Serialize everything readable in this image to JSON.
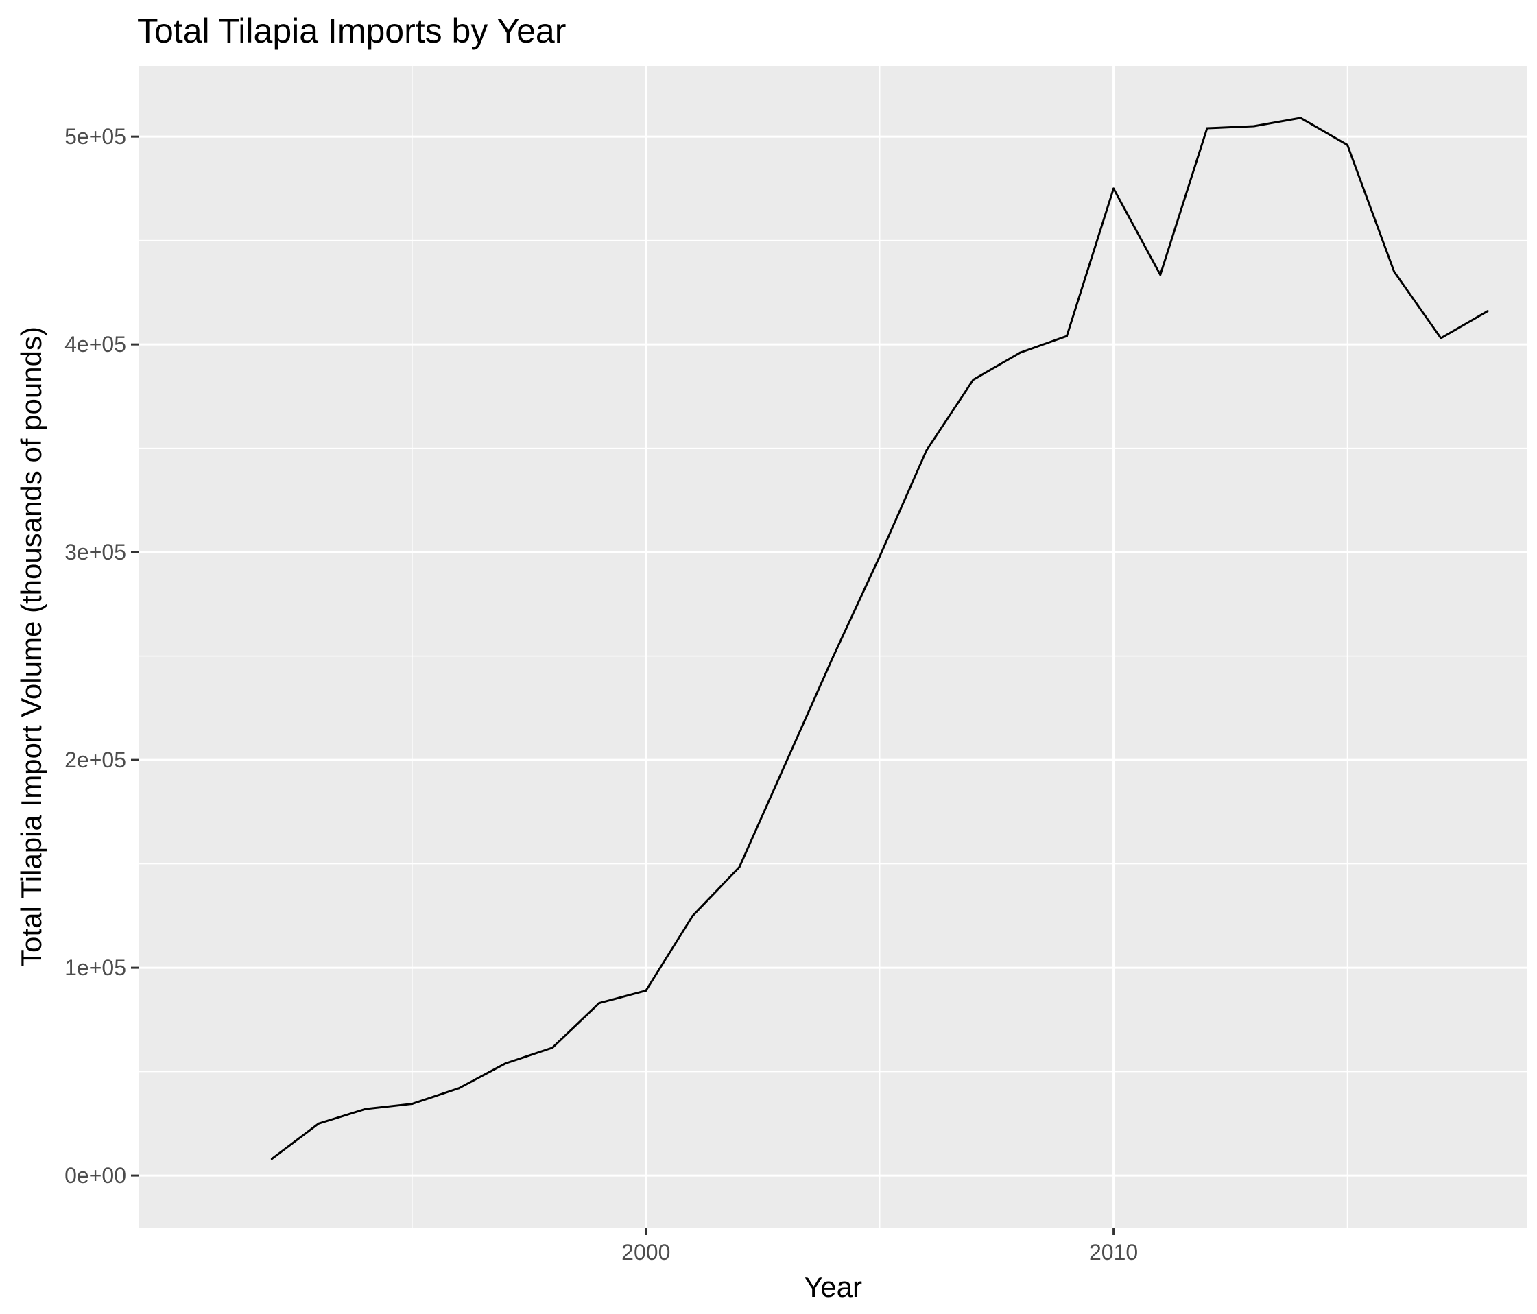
{
  "chart_data": {
    "type": "line",
    "title": "Total Tilapia Imports by Year",
    "xlabel": "Year",
    "ylabel": "Total Tilapia Import Volume (thousands of pounds)",
    "x": [
      1992,
      1993,
      1994,
      1995,
      1996,
      1997,
      1998,
      1999,
      2000,
      2001,
      2002,
      2003,
      2004,
      2005,
      2006,
      2007,
      2008,
      2009,
      2010,
      2011,
      2012,
      2013,
      2014,
      2015,
      2016,
      2017,
      2018
    ],
    "series": [
      {
        "values": [
          8000,
          25000,
          32000,
          34500,
          42000,
          54000,
          61500,
          83000,
          89000,
          125000,
          148500,
          199000,
          249500,
          298000,
          349000,
          383000,
          396000,
          404000,
          475000,
          433500,
          504000,
          505000,
          509000,
          496000,
          435000,
          403000,
          416000
        ],
        "color": "#000000"
      }
    ],
    "xlim": [
      1989.15,
      2018.85
    ],
    "ylim": [
      -25050,
      534050
    ],
    "x_ticks": [
      2000,
      2010
    ],
    "x_tick_labels": [
      "2000",
      "2010"
    ],
    "x_minor_ticks": [
      1995,
      2005,
      2015
    ],
    "y_ticks": [
      0,
      100000,
      200000,
      300000,
      400000,
      500000
    ],
    "y_tick_labels": [
      "0e+00",
      "1e+05",
      "2e+05",
      "3e+05",
      "4e+05",
      "5e+05"
    ],
    "y_minor_ticks": [
      50000,
      150000,
      250000,
      350000,
      450000
    ],
    "grid": true,
    "legend": "none",
    "colors": {
      "panel_background": "#ebebeb",
      "grid_major": "#ffffff",
      "grid_minor": "#ffffff",
      "tick_label": "#4d4d4d",
      "tick_mark": "#333333",
      "line": "#000000"
    }
  }
}
